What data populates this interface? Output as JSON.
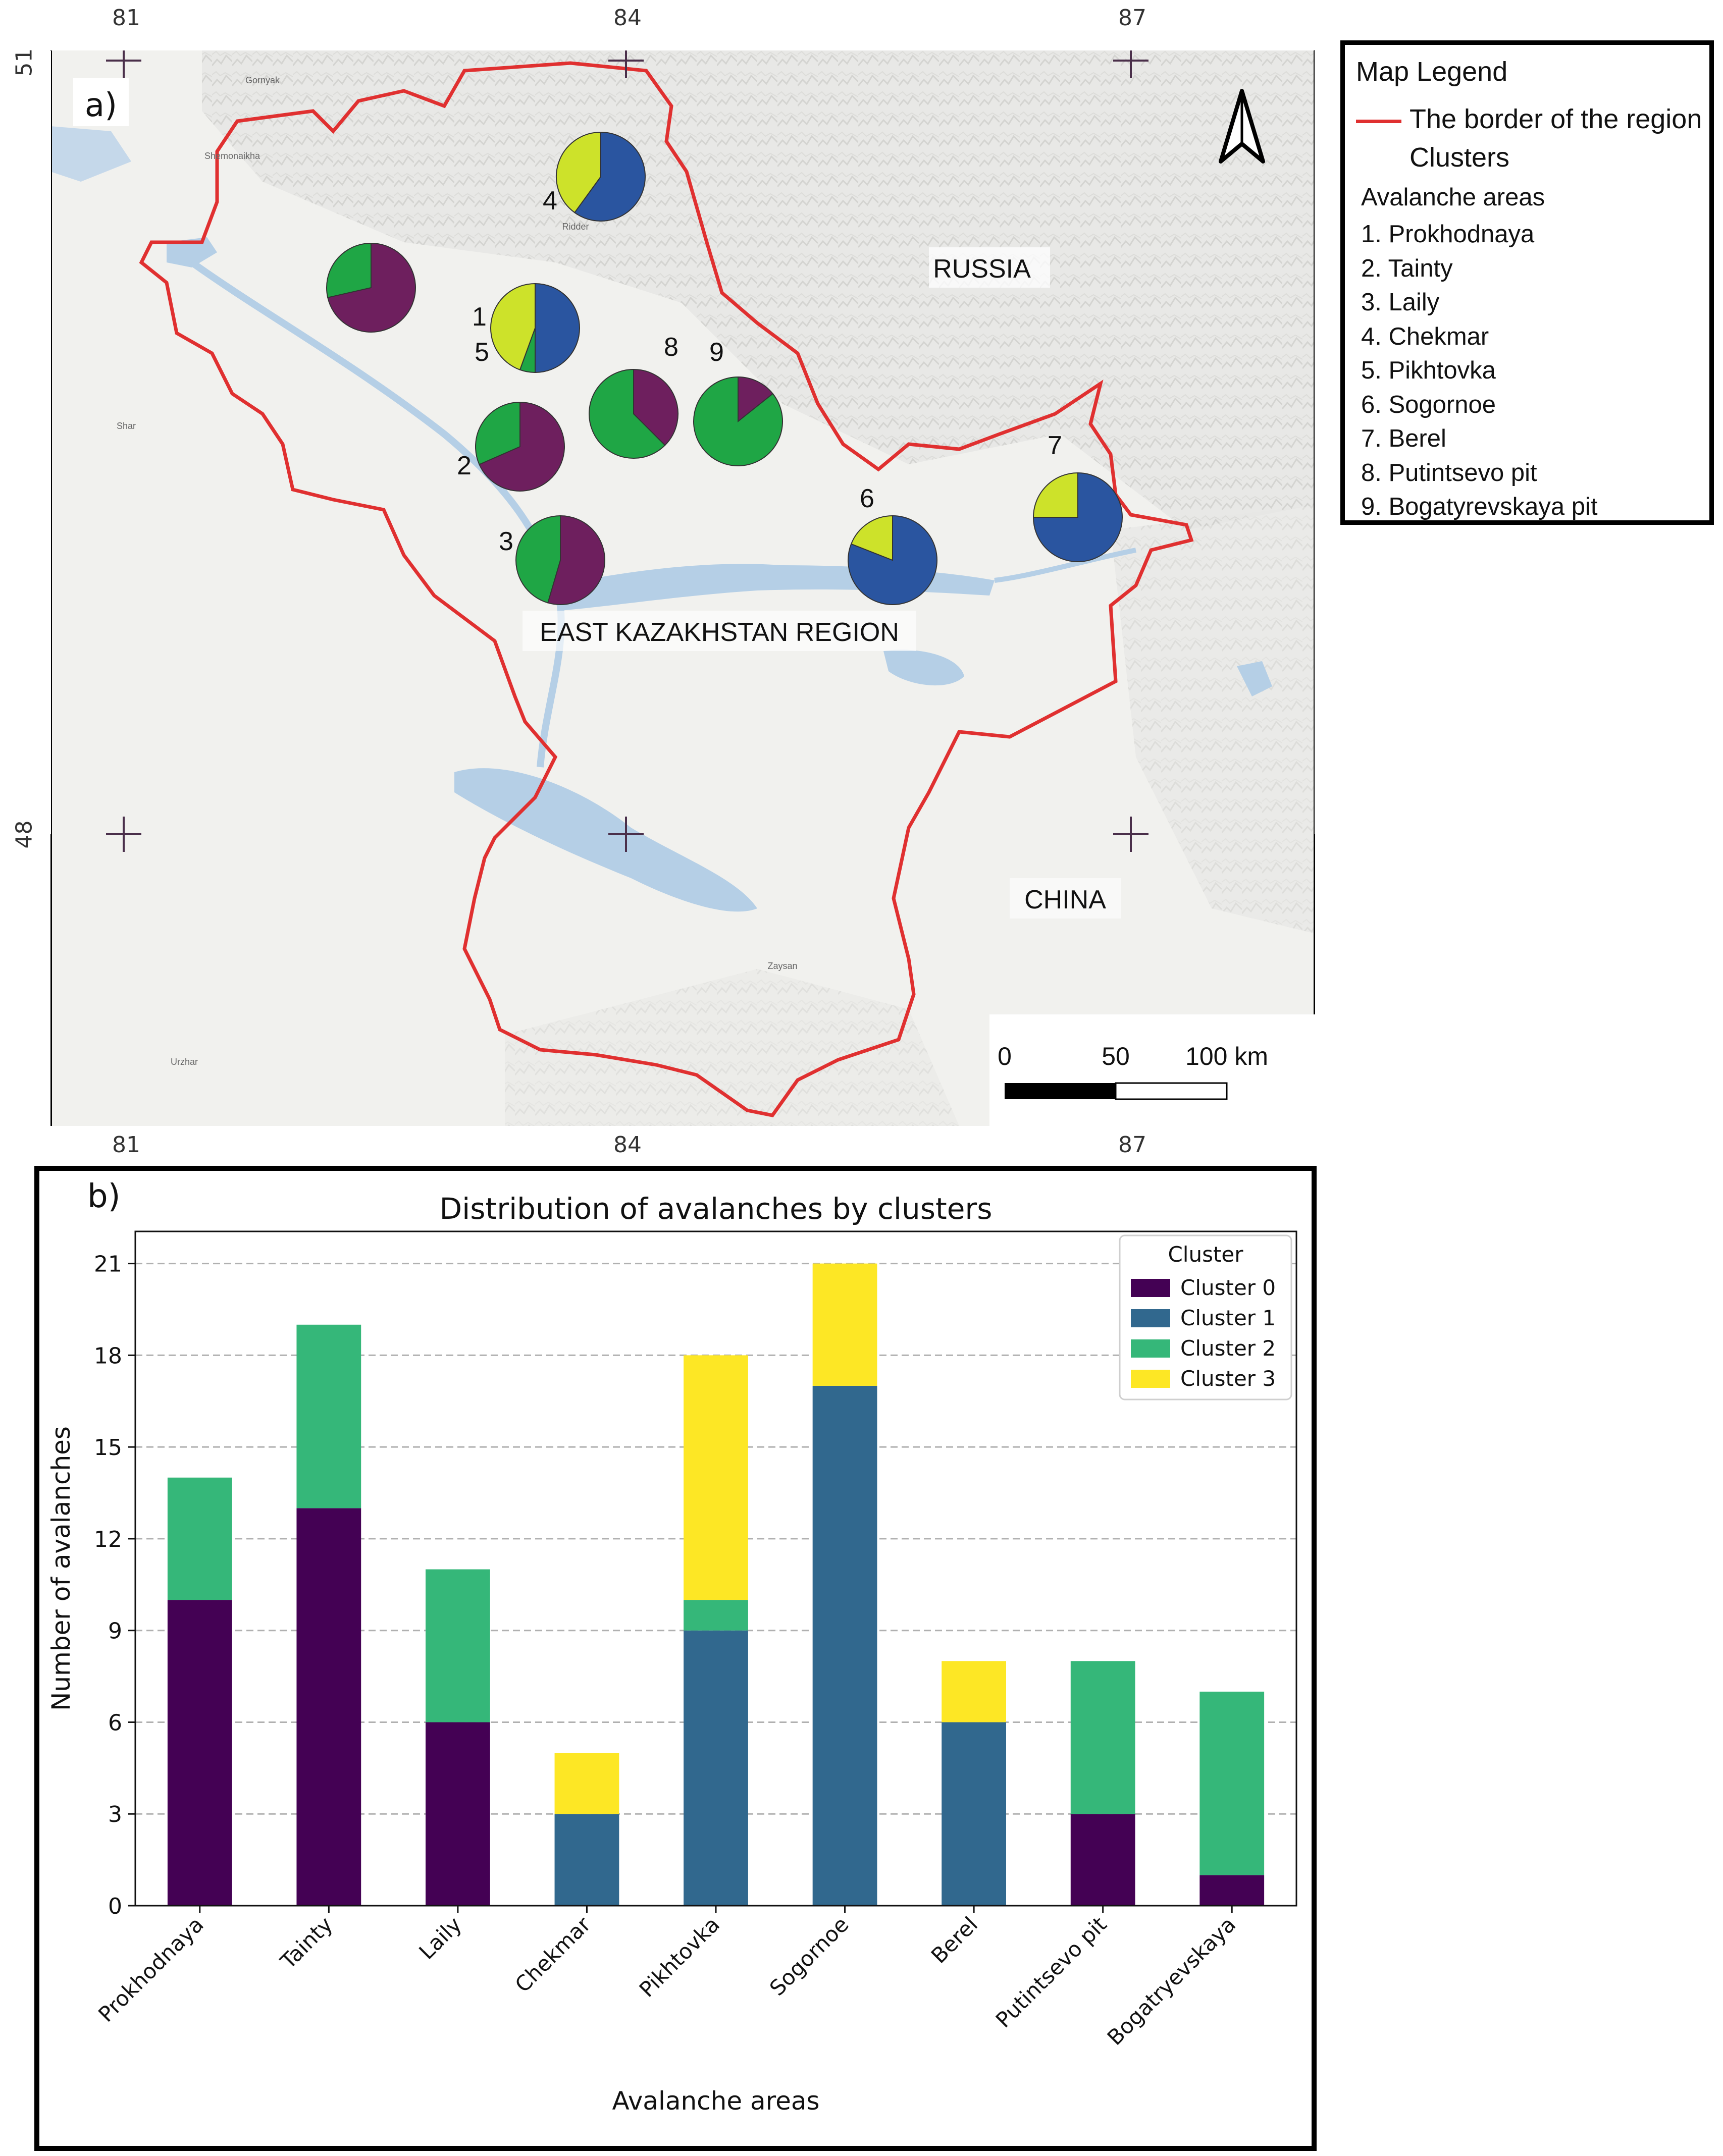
{
  "map": {
    "panel_label": "a)",
    "lon_labels": [
      "81",
      "84",
      "87"
    ],
    "lat_labels": [
      "51",
      "48"
    ],
    "country_labels": {
      "russia": "RUSSIA",
      "china": "CHINA",
      "region": "EAST KAZAKHSTAN REGION"
    },
    "town_labels": [
      "Gornyak",
      "Shemonaikha",
      "Ridder",
      "Shar",
      "Urzhar",
      "Zaysan"
    ],
    "scale_bar": {
      "labels": [
        "0",
        "50",
        "100 km"
      ]
    },
    "border_color": "#e03030",
    "north_arrow_icon": "north-arrow-icon",
    "pies": [
      {
        "label": "1",
        "area": "Prokhodnaya",
        "cluster_counts": [
          10,
          0,
          4,
          0
        ]
      },
      {
        "label": "2",
        "area": "Tainty",
        "cluster_counts": [
          13,
          0,
          6,
          0
        ]
      },
      {
        "label": "3",
        "area": "Laily",
        "cluster_counts": [
          6,
          0,
          5,
          0
        ]
      },
      {
        "label": "4",
        "area": "Chekmar",
        "cluster_counts": [
          0,
          3,
          0,
          2
        ]
      },
      {
        "label": "5",
        "area": "Pikhtovka",
        "cluster_counts": [
          0,
          9,
          1,
          8
        ]
      },
      {
        "label": "6",
        "area": "Sogornoe",
        "cluster_counts": [
          0,
          17,
          0,
          4
        ]
      },
      {
        "label": "7",
        "area": "Berel",
        "cluster_counts": [
          0,
          6,
          0,
          2
        ]
      },
      {
        "label": "8",
        "area": "Putintsevo pit",
        "cluster_counts": [
          3,
          0,
          5,
          0
        ]
      },
      {
        "label": "9",
        "area": "Bogatyrevskaya pit",
        "cluster_counts": [
          1,
          0,
          6,
          0
        ]
      }
    ],
    "pie_colors": [
      "#6e1f5e",
      "#2a55a0",
      "#1fa645",
      "#cde22a"
    ]
  },
  "legend": {
    "title": "Map Legend",
    "border_label": "The border of the region",
    "clusters_label": "Clusters",
    "areas_title": "Avalanche areas",
    "areas": [
      "1. Prokhodnaya",
      "2. Tainty",
      "3. Laily",
      "4. Chekmar",
      "5. Pikhtovka",
      "6. Sogornoe",
      "7. Berel",
      "8. Putintsevo pit",
      "9. Bogatyrevskaya pit"
    ]
  },
  "chart": {
    "panel_label": "b)"
  },
  "chart_data": {
    "type": "bar",
    "stacked": true,
    "title": "Distribution of avalanches by clusters",
    "xlabel": "Avalanche areas",
    "ylabel": "Number of avalanches",
    "categories": [
      "Prokhodnaya",
      "Tainty",
      "Laily",
      "Chekmar",
      "Pikhtovka",
      "Sogornoe",
      "Berel",
      "Putintsevo pit",
      "Bogatryevskaya"
    ],
    "series": [
      {
        "name": "Cluster 0",
        "color": "#440154",
        "values": [
          10,
          13,
          6,
          0,
          0,
          0,
          0,
          3,
          1
        ]
      },
      {
        "name": "Cluster 1",
        "color": "#31688e",
        "values": [
          0,
          0,
          0,
          3,
          9,
          17,
          6,
          0,
          0
        ]
      },
      {
        "name": "Cluster 2",
        "color": "#35b779",
        "values": [
          4,
          6,
          5,
          0,
          1,
          0,
          0,
          5,
          6
        ]
      },
      {
        "name": "Cluster 3",
        "color": "#fde725",
        "values": [
          0,
          0,
          0,
          2,
          8,
          4,
          2,
          0,
          0
        ]
      }
    ],
    "ylim": [
      0,
      22.05
    ],
    "yticks": [
      0,
      3,
      6,
      9,
      12,
      15,
      18,
      21
    ],
    "grid": "y dashed",
    "legend_title": "Cluster",
    "legend_position": "top-right"
  }
}
